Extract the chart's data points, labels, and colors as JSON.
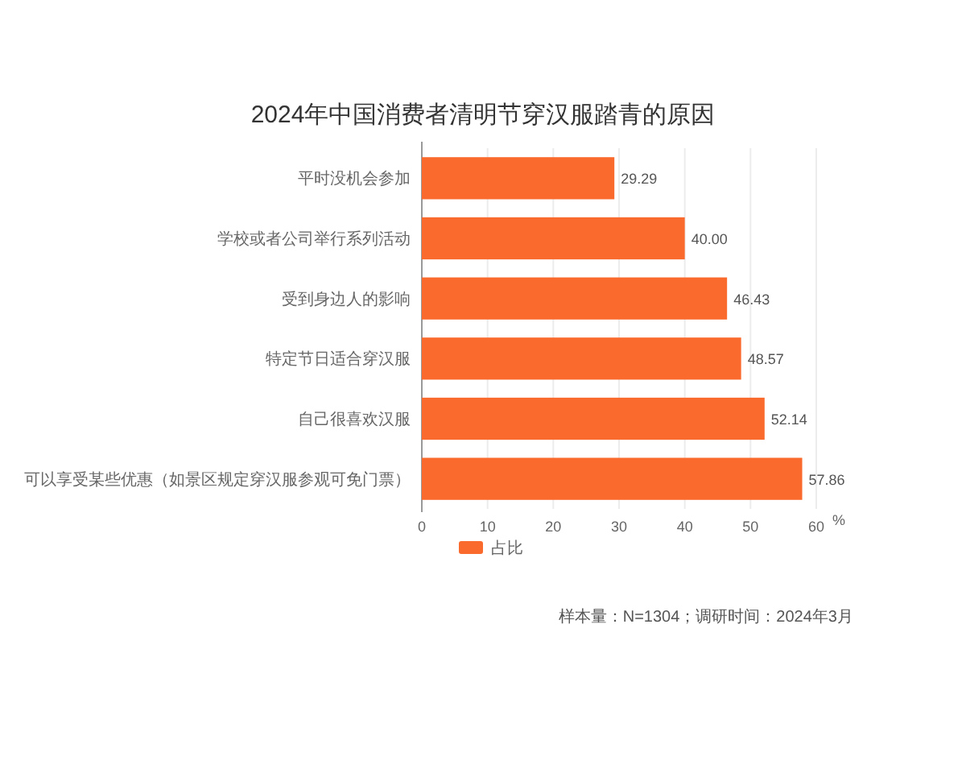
{
  "chart_data": {
    "type": "bar",
    "orientation": "horizontal",
    "title": "2024年中国消费者清明节穿汉服踏青的原因",
    "categories": [
      "平时没机会参加",
      "学校或者公司举行系列活动",
      "受到身边人的影响",
      "特定节日适合穿汉服",
      "自己很喜欢汉服",
      "可以享受某些优惠（如景区规定穿汉服参观可免门票）"
    ],
    "series": [
      {
        "name": "占比",
        "color": "#f96a2c",
        "values": [
          29.29,
          40.0,
          46.43,
          48.57,
          52.14,
          57.86
        ],
        "value_labels": [
          "29.29",
          "40.00",
          "46.43",
          "48.57",
          "52.14",
          "57.86"
        ]
      }
    ],
    "xlabel": "%",
    "xlim": [
      0,
      60
    ],
    "xticks": [
      0,
      10,
      20,
      30,
      40,
      50,
      60
    ],
    "grid": "x",
    "legend": "bottom",
    "annotations": [
      "样本量：N=1304；调研时间：2024年3月"
    ]
  }
}
